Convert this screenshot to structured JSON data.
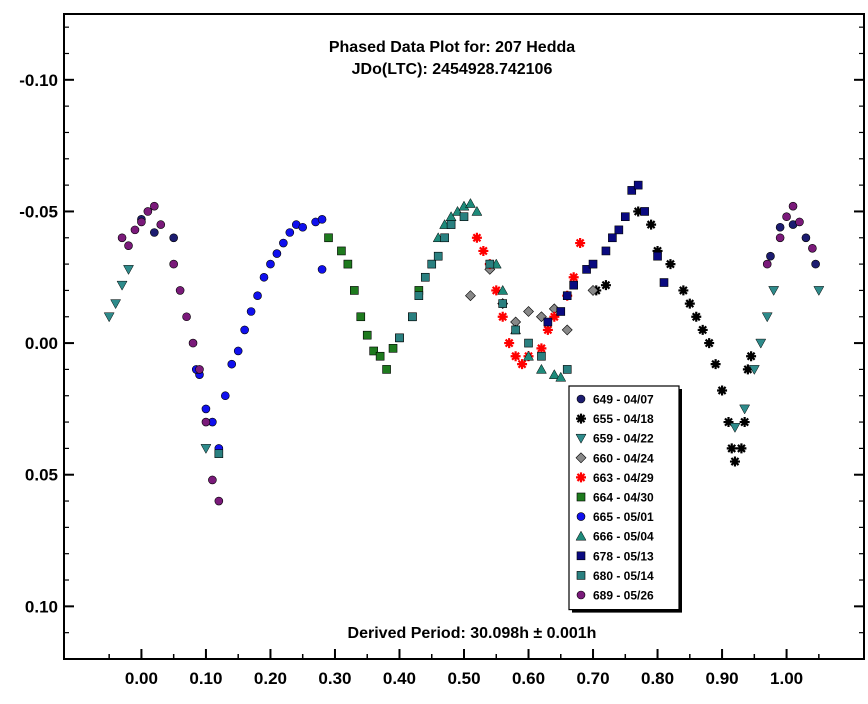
{
  "chart_data": {
    "type": "scatter",
    "title": "Phased Data Plot for: 207 Hedda",
    "subtitle": "JDo(LTC): 2454928.742106",
    "footer": "Derived Period: 30.098h  ± 0.001h",
    "xlabel": "",
    "ylabel": "",
    "xlim": [
      -0.12,
      1.12
    ],
    "ylim": [
      -0.125,
      0.12
    ],
    "y_inverted": true,
    "x_ticks": [
      "0.00",
      "0.10",
      "0.20",
      "0.30",
      "0.40",
      "0.50",
      "0.60",
      "0.70",
      "0.80",
      "0.90",
      "1.00"
    ],
    "y_ticks": [
      "-0.10",
      "-0.05",
      "0.00",
      "0.05",
      "0.10"
    ],
    "legend_position": "bottom-right",
    "grid": false,
    "series": [
      {
        "name": "649 - 04/07",
        "color": "#1c1c70",
        "marker": "circle",
        "points": [
          [
            0.0,
            -0.047
          ],
          [
            0.02,
            -0.042
          ],
          [
            0.05,
            -0.04
          ],
          [
            0.975,
            -0.033
          ],
          [
            0.99,
            -0.044
          ],
          [
            1.01,
            -0.045
          ],
          [
            1.03,
            -0.04
          ],
          [
            1.045,
            -0.03
          ]
        ]
      },
      {
        "name": "655 - 04/18",
        "color": "#000000",
        "marker": "star",
        "points": [
          [
            0.77,
            -0.05
          ],
          [
            0.79,
            -0.045
          ],
          [
            0.8,
            -0.035
          ],
          [
            0.82,
            -0.03
          ],
          [
            0.84,
            -0.02
          ],
          [
            0.85,
            -0.015
          ],
          [
            0.86,
            -0.01
          ],
          [
            0.87,
            -0.005
          ],
          [
            0.88,
            0.0
          ],
          [
            0.89,
            0.008
          ],
          [
            0.9,
            0.018
          ],
          [
            0.91,
            0.03
          ],
          [
            0.915,
            0.04
          ],
          [
            0.92,
            0.045
          ],
          [
            0.93,
            0.04
          ],
          [
            0.935,
            0.03
          ],
          [
            0.94,
            0.01
          ],
          [
            0.945,
            0.005
          ],
          [
            0.705,
            -0.02
          ],
          [
            0.72,
            -0.022
          ]
        ]
      },
      {
        "name": "659 - 04/22",
        "color": "#2e8b8b",
        "marker": "triangle-down",
        "points": [
          [
            -0.05,
            -0.01
          ],
          [
            -0.04,
            -0.015
          ],
          [
            -0.03,
            -0.022
          ],
          [
            -0.02,
            -0.028
          ],
          [
            0.92,
            0.032
          ],
          [
            0.935,
            0.025
          ],
          [
            0.95,
            0.01
          ],
          [
            0.96,
            0.0
          ],
          [
            0.97,
            -0.01
          ],
          [
            0.98,
            -0.02
          ],
          [
            1.05,
            -0.02
          ],
          [
            0.1,
            0.04
          ]
        ]
      },
      {
        "name": "660 - 04/24",
        "color": "#888888",
        "marker": "diamond",
        "points": [
          [
            0.51,
            -0.018
          ],
          [
            0.54,
            -0.028
          ],
          [
            0.56,
            -0.015
          ],
          [
            0.58,
            -0.008
          ],
          [
            0.6,
            -0.012
          ],
          [
            0.62,
            -0.01
          ],
          [
            0.64,
            -0.013
          ],
          [
            0.66,
            -0.005
          ],
          [
            0.7,
            -0.02
          ]
        ]
      },
      {
        "name": "663 - 04/29",
        "color": "#ff0000",
        "marker": "star",
        "points": [
          [
            0.52,
            -0.04
          ],
          [
            0.53,
            -0.035
          ],
          [
            0.54,
            -0.03
          ],
          [
            0.55,
            -0.02
          ],
          [
            0.56,
            -0.01
          ],
          [
            0.57,
            0.0
          ],
          [
            0.58,
            0.005
          ],
          [
            0.59,
            0.008
          ],
          [
            0.6,
            0.005
          ],
          [
            0.62,
            0.002
          ],
          [
            0.63,
            -0.005
          ],
          [
            0.64,
            -0.01
          ],
          [
            0.66,
            -0.018
          ],
          [
            0.67,
            -0.025
          ],
          [
            0.68,
            -0.038
          ]
        ]
      },
      {
        "name": "664 - 04/30",
        "color": "#1e7a1e",
        "marker": "square",
        "points": [
          [
            0.29,
            -0.04
          ],
          [
            0.31,
            -0.035
          ],
          [
            0.32,
            -0.03
          ],
          [
            0.33,
            -0.02
          ],
          [
            0.34,
            -0.01
          ],
          [
            0.35,
            -0.003
          ],
          [
            0.36,
            0.003
          ],
          [
            0.37,
            0.005
          ],
          [
            0.38,
            0.01
          ],
          [
            0.39,
            0.002
          ],
          [
            0.4,
            -0.002
          ],
          [
            0.42,
            -0.01
          ],
          [
            0.43,
            -0.02
          ]
        ]
      },
      {
        "name": "665 - 05/01",
        "color": "#1010ee",
        "marker": "circle",
        "points": [
          [
            0.09,
            0.012
          ],
          [
            0.1,
            0.025
          ],
          [
            0.11,
            0.03
          ],
          [
            0.12,
            0.04
          ],
          [
            0.13,
            0.02
          ],
          [
            0.14,
            0.008
          ],
          [
            0.15,
            0.003
          ],
          [
            0.16,
            -0.005
          ],
          [
            0.17,
            -0.012
          ],
          [
            0.18,
            -0.018
          ],
          [
            0.19,
            -0.025
          ],
          [
            0.2,
            -0.03
          ],
          [
            0.21,
            -0.034
          ],
          [
            0.22,
            -0.038
          ],
          [
            0.23,
            -0.042
          ],
          [
            0.24,
            -0.045
          ],
          [
            0.25,
            -0.044
          ],
          [
            0.27,
            -0.046
          ],
          [
            0.28,
            -0.047
          ],
          [
            0.28,
            -0.028
          ],
          [
            0.085,
            0.01
          ]
        ]
      },
      {
        "name": "666 - 05/04",
        "color": "#1e8a7a",
        "marker": "triangle",
        "points": [
          [
            0.46,
            -0.04
          ],
          [
            0.47,
            -0.045
          ],
          [
            0.48,
            -0.048
          ],
          [
            0.49,
            -0.05
          ],
          [
            0.5,
            -0.052
          ],
          [
            0.51,
            -0.053
          ],
          [
            0.52,
            -0.05
          ],
          [
            0.55,
            -0.03
          ],
          [
            0.56,
            -0.02
          ],
          [
            0.58,
            -0.005
          ],
          [
            0.6,
            0.005
          ],
          [
            0.62,
            0.01
          ],
          [
            0.64,
            0.012
          ],
          [
            0.65,
            0.013
          ]
        ]
      },
      {
        "name": "678 - 05/13",
        "color": "#0a0a80",
        "marker": "square",
        "points": [
          [
            0.63,
            -0.008
          ],
          [
            0.65,
            -0.012
          ],
          [
            0.66,
            -0.018
          ],
          [
            0.67,
            -0.022
          ],
          [
            0.69,
            -0.028
          ],
          [
            0.7,
            -0.03
          ],
          [
            0.72,
            -0.035
          ],
          [
            0.73,
            -0.04
          ],
          [
            0.74,
            -0.043
          ],
          [
            0.75,
            -0.048
          ],
          [
            0.76,
            -0.058
          ],
          [
            0.77,
            -0.06
          ],
          [
            0.78,
            -0.05
          ],
          [
            0.8,
            -0.033
          ],
          [
            0.81,
            -0.023
          ]
        ]
      },
      {
        "name": "680 - 05/14",
        "color": "#2a8080",
        "marker": "square",
        "points": [
          [
            0.4,
            -0.002
          ],
          [
            0.42,
            -0.01
          ],
          [
            0.43,
            -0.018
          ],
          [
            0.44,
            -0.025
          ],
          [
            0.45,
            -0.03
          ],
          [
            0.46,
            -0.033
          ],
          [
            0.47,
            -0.04
          ],
          [
            0.48,
            -0.045
          ],
          [
            0.5,
            -0.048
          ],
          [
            0.54,
            -0.03
          ],
          [
            0.56,
            -0.015
          ],
          [
            0.58,
            -0.005
          ],
          [
            0.6,
            0.0
          ],
          [
            0.62,
            0.005
          ],
          [
            0.66,
            0.01
          ],
          [
            0.12,
            0.042
          ]
        ]
      },
      {
        "name": "689 - 05/26",
        "color": "#7a1a7a",
        "marker": "circle",
        "points": [
          [
            -0.03,
            -0.04
          ],
          [
            -0.02,
            -0.037
          ],
          [
            -0.01,
            -0.043
          ],
          [
            0.0,
            -0.046
          ],
          [
            0.01,
            -0.05
          ],
          [
            0.02,
            -0.052
          ],
          [
            0.03,
            -0.045
          ],
          [
            0.05,
            -0.03
          ],
          [
            0.06,
            -0.02
          ],
          [
            0.07,
            -0.01
          ],
          [
            0.08,
            0.0
          ],
          [
            0.09,
            0.01
          ],
          [
            0.1,
            0.03
          ],
          [
            0.11,
            0.052
          ],
          [
            0.12,
            0.06
          ],
          [
            0.97,
            -0.03
          ],
          [
            0.99,
            -0.04
          ],
          [
            1.0,
            -0.048
          ],
          [
            1.01,
            -0.052
          ],
          [
            1.02,
            -0.046
          ],
          [
            1.04,
            -0.036
          ]
        ]
      }
    ]
  }
}
